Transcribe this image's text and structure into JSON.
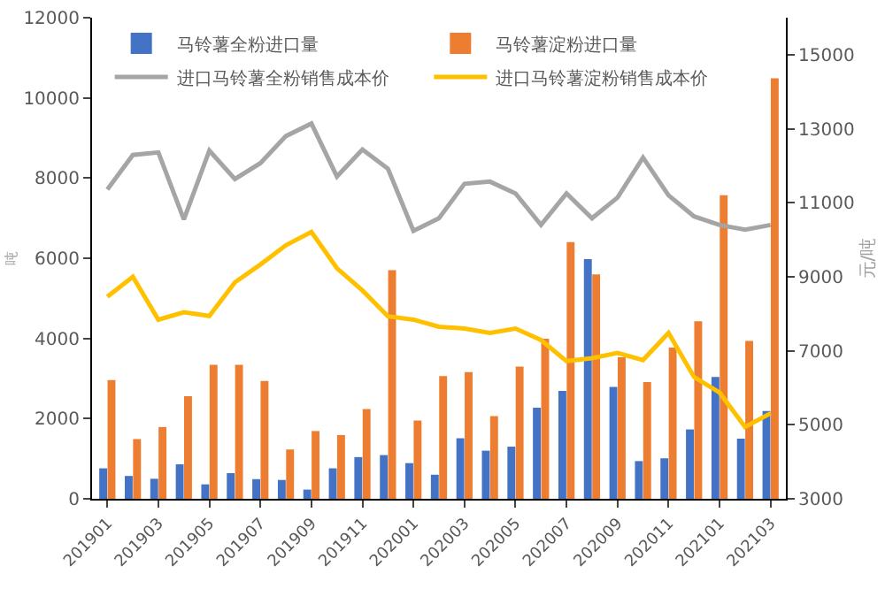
{
  "chart_data": {
    "type": "bar",
    "ylabel": "吨",
    "y2label": "元/吨",
    "categories": [
      "201901",
      null,
      "201903",
      null,
      "201905",
      null,
      "201907",
      null,
      "201909",
      null,
      "201911",
      null,
      "202001",
      null,
      "202003",
      null,
      "202005",
      null,
      "202007",
      null,
      "202009",
      null,
      "202011",
      null,
      "202101",
      null,
      "202103"
    ],
    "series": [
      {
        "name": "马铃薯全粉进口量",
        "color": "#4472c4",
        "values": [
          760,
          570,
          500,
          860,
          360,
          640,
          490,
          470,
          230,
          760,
          1040,
          1090,
          890,
          600,
          1510,
          1200,
          1300,
          2270,
          2690,
          5980,
          2790,
          940,
          1010,
          1730,
          3040,
          1500,
          2190
        ]
      },
      {
        "name": "马铃薯淀粉进口量",
        "color": "#ed7d31",
        "values": [
          2960,
          1490,
          1790,
          2560,
          3340,
          3340,
          2940,
          1230,
          1690,
          1590,
          2240,
          5700,
          1950,
          3060,
          3160,
          2060,
          3300,
          3990,
          6400,
          5600,
          3530,
          2910,
          3770,
          4430,
          7570,
          3940,
          10490
        ]
      },
      {
        "name": "进口马铃薯全粉销售成本价",
        "type": "line",
        "axis": "y2",
        "color": "#a5a5a5",
        "values": [
          11360,
          12290,
          12360,
          10550,
          12410,
          11640,
          12070,
          12800,
          13140,
          11710,
          12440,
          11920,
          10240,
          10580,
          11510,
          11570,
          11250,
          10400,
          11250,
          10580,
          11140,
          12220,
          11200,
          10630,
          10400,
          10270,
          10400
        ]
      },
      {
        "name": "进口马铃薯淀粉销售成本价",
        "type": "line",
        "axis": "y2",
        "color": "#ffc000",
        "values": [
          8460,
          9000,
          7840,
          8040,
          7940,
          8850,
          9330,
          9850,
          10210,
          9230,
          8630,
          7930,
          7840,
          7650,
          7600,
          7480,
          7600,
          7290,
          6720,
          6800,
          6940,
          6750,
          7480,
          6290,
          5870,
          4940,
          5310
        ]
      }
    ],
    "ylim": [
      0,
      12000
    ],
    "yticks": [
      0,
      2000,
      4000,
      6000,
      8000,
      10000,
      12000
    ],
    "y2lim": [
      3000,
      16000
    ],
    "y2ticks": [
      3000,
      5000,
      7000,
      9000,
      11000,
      13000,
      15000
    ],
    "grid": false,
    "legend": "top left",
    "marker": "none",
    "line_style": "solid"
  }
}
